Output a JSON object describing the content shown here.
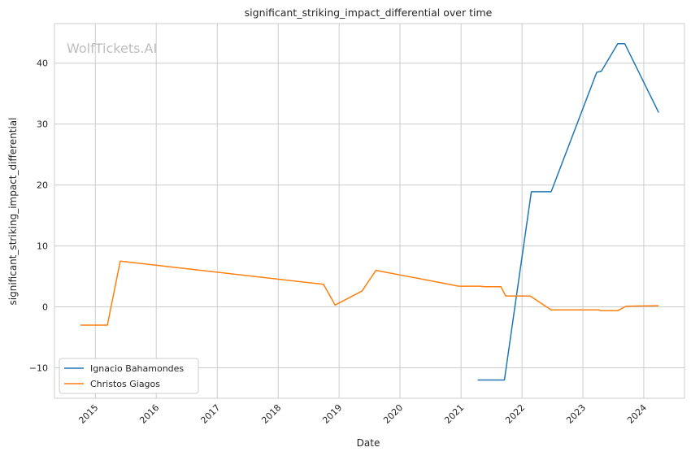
{
  "chart_data": {
    "type": "line",
    "title": "significant_striking_impact_differential over time",
    "xlabel": "Date",
    "ylabel": "significant_striking_impact_differential",
    "watermark": "WolfTickets.AI",
    "x_ticks": [
      "2015",
      "2016",
      "2017",
      "2018",
      "2019",
      "2020",
      "2021",
      "2022",
      "2023",
      "2024"
    ],
    "y_ticks": [
      -10,
      0,
      10,
      20,
      30,
      40
    ],
    "xlim": [
      "2014-05-01",
      "2024-09-01"
    ],
    "ylim": [
      -15,
      46.5
    ],
    "grid": true,
    "legend_position": "lower-left",
    "series": [
      {
        "name": "Ignacio Bahamondes",
        "color": "#1f77b4",
        "points": [
          [
            "2021-04-10",
            -12.0
          ],
          [
            "2021-09-18",
            -12.0
          ],
          [
            "2022-02-26",
            18.9
          ],
          [
            "2022-06-25",
            18.9
          ],
          [
            "2023-03-25",
            38.5
          ],
          [
            "2023-04-22",
            38.7
          ],
          [
            "2023-07-29",
            43.2
          ],
          [
            "2023-09-09",
            43.2
          ],
          [
            "2024-03-30",
            31.9
          ]
        ]
      },
      {
        "name": "Christos Giagos",
        "color": "#ff7f0e",
        "points": [
          [
            "2014-10-04",
            -3.0
          ],
          [
            "2015-03-14",
            -3.0
          ],
          [
            "2015-05-30",
            7.5
          ],
          [
            "2018-09-29",
            3.7
          ],
          [
            "2018-12-08",
            0.3
          ],
          [
            "2019-05-18",
            2.6
          ],
          [
            "2019-08-10",
            6.0
          ],
          [
            "2020-12-19",
            3.4
          ],
          [
            "2021-04-24",
            3.4
          ],
          [
            "2021-05-22",
            3.3
          ],
          [
            "2021-08-28",
            3.3
          ],
          [
            "2021-09-25",
            1.8
          ],
          [
            "2022-02-19",
            1.8
          ],
          [
            "2022-06-25",
            -0.5
          ],
          [
            "2023-04-08",
            -0.5
          ],
          [
            "2023-04-15",
            -0.6
          ],
          [
            "2023-07-29",
            -0.6
          ],
          [
            "2023-09-16",
            0.1
          ],
          [
            "2024-03-30",
            0.2
          ]
        ]
      }
    ]
  }
}
